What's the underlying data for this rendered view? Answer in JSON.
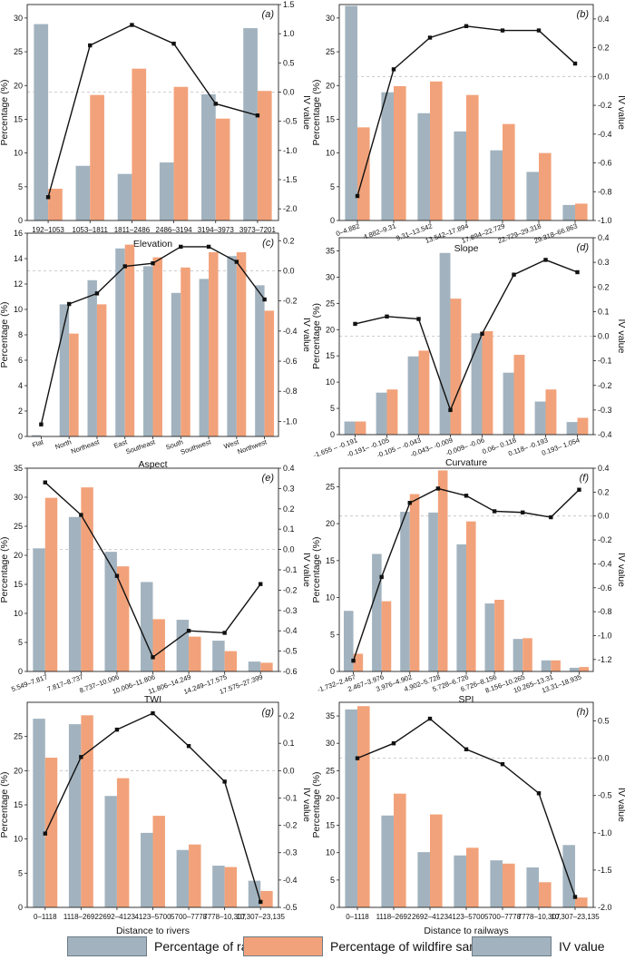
{
  "colors": {
    "rasters": "#a2b3bf",
    "samples": "#f2a27a",
    "iv": "#111111",
    "zero_line": "#bfbfbf"
  },
  "chart_data": [
    {
      "id": "a",
      "panel_label": "(a)",
      "type": "bar+line",
      "xlabel": "Elevation",
      "ylabel": "Percentage (%)",
      "y2label": "IV value",
      "categories": [
        "192–1053",
        "1053–1811",
        "1811–2486",
        "2486–3194",
        "3194–3973",
        "3973–7201"
      ],
      "series": [
        {
          "name": "Percentage of rasters",
          "values": [
            29.1,
            8.1,
            6.9,
            8.6,
            18.7,
            28.5
          ]
        },
        {
          "name": "Percentage of wildfire samples",
          "values": [
            4.7,
            18.6,
            22.5,
            19.8,
            15.1,
            19.2
          ]
        }
      ],
      "iv": [
        -1.8,
        0.8,
        1.15,
        0.83,
        -0.2,
        -0.4
      ],
      "ylim": [
        0,
        32
      ],
      "yticks": [
        0,
        5,
        10,
        15,
        20,
        25,
        30
      ],
      "y2lim": [
        -2.2,
        1.5
      ],
      "y2ticks": [
        -2.0,
        -1.5,
        -1.0,
        -0.5,
        0.0,
        0.5,
        1.0,
        1.5
      ],
      "y2fmt": 1,
      "rotate_x": false
    },
    {
      "id": "b",
      "panel_label": "(b)",
      "type": "bar+line",
      "xlabel": "Slope",
      "ylabel": "Percentage (%)",
      "y2label": "IV value",
      "categories": [
        "0–4.882",
        "4.882–9.31",
        "9.31–13.542",
        "13.542–17.894",
        "17.894–22.729",
        "22.729–29.318",
        "29.318–66.863"
      ],
      "series": [
        {
          "name": "Percentage of rasters",
          "values": [
            31.8,
            19.0,
            15.9,
            13.2,
            10.4,
            7.2,
            2.3
          ]
        },
        {
          "name": "Percentage of wildfire samples",
          "values": [
            13.8,
            19.9,
            20.6,
            18.6,
            14.3,
            10.0,
            2.5
          ]
        }
      ],
      "iv": [
        -0.83,
        0.05,
        0.27,
        0.35,
        0.32,
        0.32,
        0.09
      ],
      "ylim": [
        0,
        32
      ],
      "yticks": [
        0,
        5,
        10,
        15,
        20,
        25,
        30
      ],
      "y2lim": [
        -1.0,
        0.5
      ],
      "y2ticks": [
        -1.0,
        -0.8,
        -0.6,
        -0.4,
        -0.2,
        0.0,
        0.2,
        0.4
      ],
      "y2fmt": 1,
      "rotate_x": true
    },
    {
      "id": "c",
      "panel_label": "(c)",
      "type": "bar+line",
      "xlabel": "Aspect",
      "ylabel": "Percentage (%)",
      "y2label": "IV value",
      "categories": [
        "Flat",
        "North",
        "Northeast",
        "East",
        "Southeast",
        "South",
        "Southwest",
        "West",
        "Northwest"
      ],
      "series": [
        {
          "name": "Percentage of rasters",
          "values": [
            0.1,
            10.4,
            12.3,
            14.8,
            13.4,
            11.3,
            12.4,
            14.2,
            11.9
          ]
        },
        {
          "name": "Percentage of wildfire samples",
          "values": [
            0.0,
            8.1,
            10.4,
            15.1,
            14.1,
            13.3,
            14.5,
            14.5,
            9.9
          ]
        }
      ],
      "iv": [
        -1.02,
        -0.22,
        -0.15,
        0.03,
        0.05,
        0.16,
        0.16,
        0.06,
        -0.19
      ],
      "ylim": [
        0,
        16
      ],
      "yticks": [
        0,
        2,
        4,
        6,
        8,
        10,
        12,
        14,
        16
      ],
      "y2lim": [
        -1.1,
        0.25
      ],
      "y2ticks": [
        -1.0,
        -0.8,
        -0.6,
        -0.4,
        -0.2,
        0.0,
        0.2
      ],
      "y2fmt": 1,
      "rotate_x": true
    },
    {
      "id": "d",
      "panel_label": "(d)",
      "type": "bar+line",
      "xlabel": "Curvature",
      "ylabel": "Percentage (%)",
      "y2label": "IV value",
      "categories": [
        "-1.655 – -0.191",
        "-0.191– -0.105",
        "-0.105 – -0.043",
        "-0.043– -0.009",
        "-0.009– -0.06",
        "0.06– 0.118",
        "0.118– -0.193",
        "0.193– 1.054"
      ],
      "series": [
        {
          "name": "Percentage of rasters",
          "values": [
            2.5,
            8.0,
            14.9,
            34.6,
            19.3,
            11.8,
            6.3,
            2.4
          ]
        },
        {
          "name": "Percentage of wildfire samples",
          "values": [
            2.5,
            8.6,
            16.0,
            25.9,
            19.7,
            15.2,
            8.6,
            3.2
          ]
        }
      ],
      "iv": [
        0.05,
        0.08,
        0.07,
        -0.3,
        0.01,
        0.25,
        0.31,
        0.26
      ],
      "ylim": [
        0,
        37.5
      ],
      "yticks": [
        0,
        5,
        10,
        15,
        20,
        25,
        30,
        35
      ],
      "y2lim": [
        -0.4,
        0.4
      ],
      "y2ticks": [
        -0.4,
        -0.3,
        -0.2,
        -0.1,
        0.0,
        0.1,
        0.2,
        0.3,
        0.4
      ],
      "y2fmt": 1,
      "rotate_x": true
    },
    {
      "id": "e",
      "panel_label": "(e)",
      "type": "bar+line",
      "xlabel": "TWI",
      "ylabel": "Percentage (%)",
      "y2label": "IV value",
      "categories": [
        "5.549–7.817",
        "7.817–8.737",
        "8.737–10.006",
        "10.006–11.806",
        "11.806–14.249",
        "14.249–17.575",
        "17.575–27.399"
      ],
      "series": [
        {
          "name": "Percentage of rasters",
          "values": [
            21.2,
            26.6,
            20.6,
            15.4,
            8.9,
            5.3,
            1.7
          ]
        },
        {
          "name": "Percentage of wildfire samples",
          "values": [
            29.9,
            31.7,
            18.1,
            9.0,
            6.0,
            3.5,
            1.5
          ]
        }
      ],
      "iv": [
        0.33,
        0.17,
        -0.13,
        -0.53,
        -0.4,
        -0.41,
        -0.17
      ],
      "ylim": [
        0,
        35
      ],
      "yticks": [
        0,
        5,
        10,
        15,
        20,
        25,
        30,
        35
      ],
      "y2lim": [
        -0.6,
        0.4
      ],
      "y2ticks": [
        -0.6,
        -0.5,
        -0.4,
        -0.3,
        -0.2,
        -0.1,
        0.0,
        0.1,
        0.2,
        0.3,
        0.4
      ],
      "y2fmt": 1,
      "rotate_x": true
    },
    {
      "id": "f",
      "panel_label": "(f)",
      "type": "bar+line",
      "xlabel": "SPI",
      "ylabel": "Percentage (%)",
      "y2label": "IV value",
      "categories": [
        "-1.732–2.467",
        "2.467–3.976",
        "3.976–4.902",
        "4.902–5.728",
        "5.728–6.726",
        "6.726–8.156",
        "8.156–10.265",
        "10.265–13.31",
        "13.31–18.935"
      ],
      "series": [
        {
          "name": "Percentage of rasters",
          "values": [
            8.2,
            15.9,
            21.6,
            21.5,
            17.2,
            9.2,
            4.4,
            1.5,
            0.5
          ]
        },
        {
          "name": "Percentage of wildfire samples",
          "values": [
            2.4,
            9.5,
            24.0,
            27.2,
            20.3,
            9.7,
            4.5,
            1.5,
            0.6
          ]
        }
      ],
      "iv": [
        -1.21,
        -0.51,
        0.11,
        0.23,
        0.17,
        0.04,
        0.03,
        -0.01,
        0.22
      ],
      "ylim": [
        0,
        27.5
      ],
      "yticks": [
        0,
        5,
        10,
        15,
        20,
        25
      ],
      "y2lim": [
        -1.3,
        0.4
      ],
      "y2ticks": [
        -1.2,
        -1.0,
        -0.8,
        -0.6,
        -0.4,
        -0.2,
        0.0,
        0.2,
        0.4
      ],
      "y2fmt": 1,
      "rotate_x": true
    },
    {
      "id": "g",
      "panel_label": "(g)",
      "type": "bar+line",
      "xlabel": "Distance to rivers",
      "ylabel": "Percentage (%)",
      "y2label": "IV value",
      "categories": [
        "0–1118",
        "1118–2692",
        "2692–4123",
        "4123–5700",
        "5700–7778",
        "7778–10,307",
        "10,307–23,135"
      ],
      "series": [
        {
          "name": "Percentage of rasters",
          "values": [
            27.6,
            26.8,
            16.3,
            10.9,
            8.4,
            6.1,
            3.9
          ]
        },
        {
          "name": "Percentage of wildfire samples",
          "values": [
            21.9,
            28.1,
            18.9,
            13.4,
            9.2,
            5.9,
            2.4
          ]
        }
      ],
      "iv": [
        -0.23,
        0.05,
        0.15,
        0.21,
        0.09,
        -0.04,
        -0.48
      ],
      "ylim": [
        0,
        30
      ],
      "yticks": [
        0,
        5,
        10,
        15,
        20,
        25
      ],
      "y2lim": [
        -0.5,
        0.25
      ],
      "y2ticks": [
        -0.5,
        -0.4,
        -0.3,
        -0.2,
        -0.1,
        0.0,
        0.1,
        0.2
      ],
      "y2fmt": 1,
      "rotate_x": false
    },
    {
      "id": "h",
      "panel_label": "(h)",
      "type": "bar+line",
      "xlabel": "Distance to railways",
      "ylabel": "Percentage (%)",
      "y2label": "IV value",
      "categories": [
        "0–1118",
        "1118–2692",
        "2692–4123",
        "4123–5700",
        "5700–7778",
        "7778–10,307",
        "10,307–23,135"
      ],
      "series": [
        {
          "name": "Percentage of rasters",
          "values": [
            36.2,
            16.8,
            10.1,
            9.5,
            8.6,
            7.3,
            11.4
          ]
        },
        {
          "name": "Percentage of wildfire samples",
          "values": [
            36.8,
            20.8,
            17.0,
            10.9,
            8.0,
            4.6,
            1.8
          ]
        }
      ],
      "iv": [
        0.0,
        0.2,
        0.53,
        0.12,
        -0.08,
        -0.47,
        -1.86
      ],
      "ylim": [
        0,
        37.5
      ],
      "yticks": [
        0,
        5,
        10,
        15,
        20,
        25,
        30,
        35
      ],
      "y2lim": [
        -2.0,
        0.75
      ],
      "y2ticks": [
        -2.0,
        -1.5,
        -1.0,
        -0.5,
        0.0,
        0.5
      ],
      "y2fmt": 1,
      "rotate_x": false
    }
  ],
  "legend": {
    "items": [
      {
        "label": "Percentage of rasters",
        "color": "#a2b3bf"
      },
      {
        "label": "Percentage of wildfire samples",
        "color": "#f2a27a"
      },
      {
        "label": "IV value",
        "color": "#a2b3bf"
      }
    ]
  }
}
